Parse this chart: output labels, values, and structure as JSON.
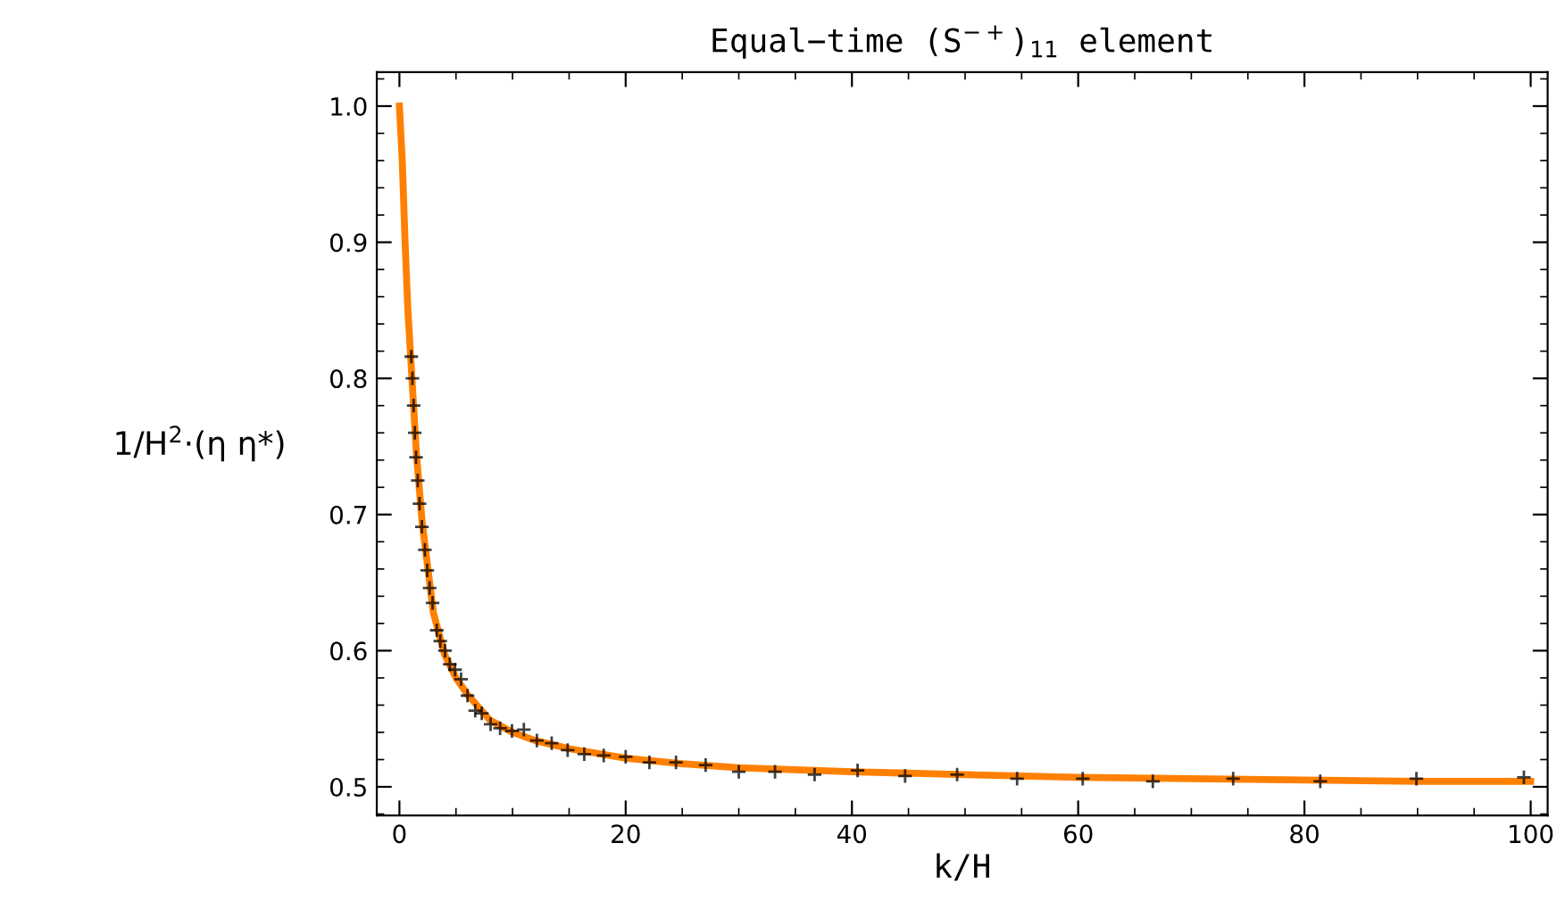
{
  "chart_data": {
    "type": "scatter",
    "title": "Equal−time (S$^{−+}$)$_{11}$ element",
    "xlabel": "k/H",
    "ylabel": "1/H$^{2}$·(η η*)",
    "series": [
      {
        "type": "line",
        "color": "#ff8000",
        "marker": "none",
        "line_style": "solid",
        "x": [
          0,
          0.25,
          0.5,
          0.75,
          1,
          1.5,
          2,
          3,
          4,
          5,
          6,
          8,
          10,
          12,
          15,
          20,
          25,
          30,
          40,
          50,
          60,
          70,
          80,
          90,
          100
        ],
        "values": [
          1.0,
          0.96,
          0.9,
          0.85,
          0.815,
          0.745,
          0.695,
          0.628,
          0.597,
          0.58,
          0.568,
          0.549,
          0.54,
          0.534,
          0.528,
          0.521,
          0.517,
          0.514,
          0.511,
          0.509,
          0.507,
          0.506,
          0.505,
          0.504,
          0.504
        ]
      },
      {
        "color": "#000000",
        "marker": "cross",
        "x": [
          1.05,
          1.15,
          1.26,
          1.36,
          1.47,
          1.62,
          1.78,
          1.99,
          2.25,
          2.46,
          2.67,
          2.93,
          3.3,
          3.61,
          4.03,
          4.45,
          4.92,
          5.45,
          6.02,
          6.7,
          7.28,
          8.06,
          8.9,
          9.95,
          11.0,
          12.15,
          13.46,
          14.87,
          16.34,
          18.06,
          20.0,
          22.1,
          24.45,
          27.07,
          30.0,
          33.2,
          36.7,
          40.5,
          44.7,
          49.3,
          54.6,
          60.4,
          66.6,
          73.7,
          81.4,
          89.9,
          99.4
        ],
        "values": [
          0.816,
          0.8,
          0.78,
          0.76,
          0.742,
          0.725,
          0.708,
          0.691,
          0.674,
          0.659,
          0.646,
          0.635,
          0.615,
          0.607,
          0.6,
          0.59,
          0.586,
          0.579,
          0.567,
          0.556,
          0.554,
          0.546,
          0.543,
          0.541,
          0.542,
          0.534,
          0.532,
          0.527,
          0.524,
          0.523,
          0.522,
          0.518,
          0.518,
          0.516,
          0.511,
          0.511,
          0.509,
          0.512,
          0.508,
          0.509,
          0.506,
          0.506,
          0.504,
          0.506,
          0.504,
          0.506,
          0.507
        ]
      }
    ],
    "xlim": [
      -2,
      101.5
    ],
    "ylim": [
      0.479,
      1.025
    ],
    "xticks": [
      0,
      20,
      40,
      60,
      80,
      100
    ],
    "yticks": [
      0.5,
      0.6,
      0.7,
      0.8,
      0.9,
      {
        "value": 1,
        "label": "1.0"
      }
    ],
    "grid": false,
    "legend": false
  }
}
